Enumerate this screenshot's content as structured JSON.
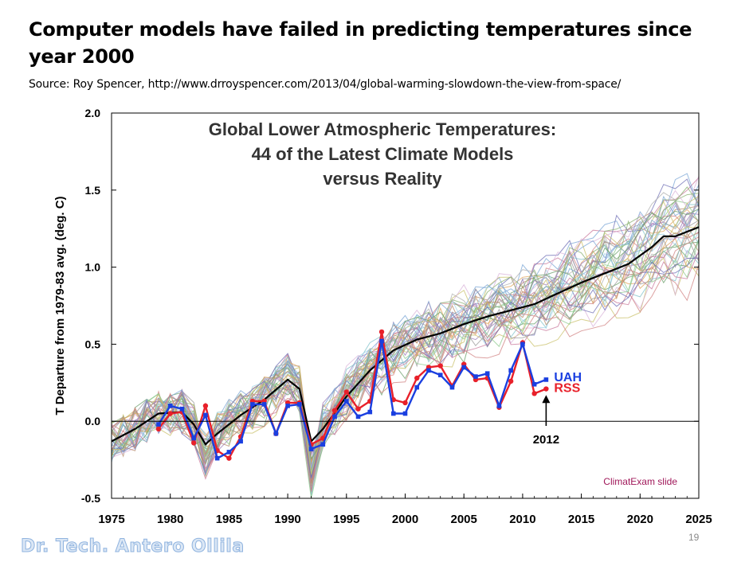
{
  "slide": {
    "title": "Computer models have failed in predicting temperatures since year 2000",
    "source": "Source: Roy Spencer, http://www.drroyspencer.com/2013/04/global-warming-slowdown-the-view-from-space/",
    "page_number": "19",
    "author": "Dr. Tech. Antero Ollila",
    "watermark": "ClimatExam slide"
  },
  "colors": {
    "uah": "#1a3fe0",
    "rss": "#e8202a",
    "mean": "#000000",
    "watermark": "#a0185a"
  },
  "chart_data": {
    "type": "line",
    "title_lines": [
      "Global Lower Atmospheric Temperatures:",
      "44 of the Latest Climate Models",
      "versus Reality"
    ],
    "ylabel": "T Departure from 1979-83 avg. (deg. C)",
    "xlabel": "",
    "xlim": [
      1975,
      2025
    ],
    "ylim": [
      -0.5,
      2.0
    ],
    "x_ticks": [
      "1975",
      "1980",
      "1985",
      "1990",
      "1995",
      "2000",
      "2005",
      "2010",
      "2015",
      "2020",
      "2025"
    ],
    "y_ticks": [
      "-0.5",
      "0.0",
      "0.5",
      "1.0",
      "1.5",
      "2.0"
    ],
    "grid": false,
    "annotation": "2012",
    "annotation_x": 2012,
    "model_count": 44,
    "series": [
      {
        "name": "UAH",
        "x": [
          1979,
          1980,
          1981,
          1982,
          1983,
          1984,
          1985,
          1986,
          1987,
          1988,
          1989,
          1990,
          1991,
          1992,
          1993,
          1994,
          1995,
          1996,
          1997,
          1998,
          1999,
          2000,
          2001,
          2002,
          2003,
          2004,
          2005,
          2006,
          2007,
          2008,
          2009,
          2010,
          2011,
          2012
        ],
        "values": [
          -0.02,
          0.1,
          0.08,
          -0.11,
          0.04,
          -0.24,
          -0.2,
          -0.13,
          0.11,
          0.11,
          -0.08,
          0.1,
          0.11,
          -0.18,
          -0.15,
          0.03,
          0.13,
          0.03,
          0.06,
          0.52,
          0.05,
          0.05,
          0.22,
          0.33,
          0.3,
          0.22,
          0.35,
          0.29,
          0.31,
          0.1,
          0.33,
          0.5,
          0.24,
          0.27
        ]
      },
      {
        "name": "RSS",
        "x": [
          1979,
          1980,
          1981,
          1982,
          1983,
          1984,
          1985,
          1986,
          1987,
          1988,
          1989,
          1990,
          1991,
          1992,
          1993,
          1994,
          1995,
          1996,
          1997,
          1998,
          1999,
          2000,
          2001,
          2002,
          2003,
          2004,
          2005,
          2006,
          2007,
          2008,
          2009,
          2010,
          2011,
          2012
        ],
        "values": [
          -0.05,
          0.05,
          0.06,
          -0.14,
          0.1,
          -0.19,
          -0.24,
          -0.1,
          0.13,
          0.13,
          -0.08,
          0.12,
          0.12,
          -0.15,
          -0.11,
          0.07,
          0.19,
          0.08,
          0.13,
          0.58,
          0.14,
          0.12,
          0.28,
          0.35,
          0.36,
          0.23,
          0.37,
          0.27,
          0.28,
          0.09,
          0.26,
          0.51,
          0.18,
          0.21
        ]
      },
      {
        "name": "",
        "x": [
          1975,
          1977,
          1979,
          1981,
          1982,
          1983,
          1984,
          1986,
          1988,
          1990,
          1991,
          1992,
          1993,
          1995,
          1997,
          1999,
          2001,
          2003,
          2005,
          2007,
          2009,
          2011,
          2013,
          2015,
          2017,
          2019,
          2021,
          2022,
          2023,
          2025
        ],
        "values": [
          -0.13,
          -0.05,
          0.05,
          0.06,
          -0.02,
          -0.15,
          -0.08,
          0.04,
          0.14,
          0.27,
          0.21,
          -0.13,
          -0.05,
          0.16,
          0.33,
          0.46,
          0.53,
          0.57,
          0.63,
          0.68,
          0.72,
          0.76,
          0.83,
          0.9,
          0.96,
          1.02,
          1.13,
          1.2,
          1.2,
          1.26
        ]
      }
    ]
  }
}
